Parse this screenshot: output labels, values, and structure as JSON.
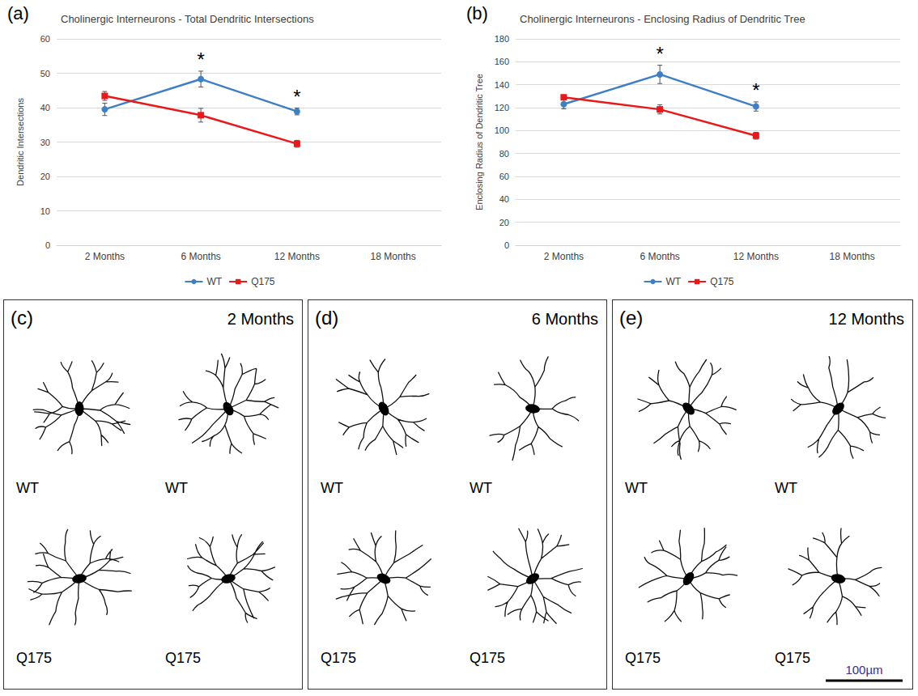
{
  "chart_data": [
    {
      "type": "line",
      "panel": "(a)",
      "title": "Cholinergic Interneurons - Total Dendritic Intersections",
      "y_label": "Dendritic Intersections",
      "categories": [
        "2 Months",
        "6 Months",
        "12 Months",
        "18 Months"
      ],
      "series": [
        {
          "name": "WT",
          "color": "#3f7fc4",
          "marker": "circle",
          "values": [
            39.5,
            48.3,
            38.9,
            null
          ],
          "errors": [
            1.8,
            2.3,
            1.0,
            null
          ]
        },
        {
          "name": "Q175",
          "color": "#e8191b",
          "marker": "square",
          "values": [
            43.4,
            37.8,
            29.5,
            null
          ],
          "errors": [
            1.3,
            2.0,
            1.0,
            null
          ]
        }
      ],
      "ylim": [
        0,
        60
      ],
      "yticks": [
        0,
        10,
        20,
        30,
        40,
        50,
        60
      ],
      "grid": true,
      "legend": "bottom",
      "annotations": [
        {
          "text": "*",
          "category": "6 Months"
        },
        {
          "text": "*",
          "category": "12 Months"
        }
      ]
    },
    {
      "type": "line",
      "panel": "(b)",
      "title": "Cholinergic Interneurons - Enclosing Radius of Dendritic Tree",
      "y_label": "Enclosing Radius of Dendritic Tree",
      "categories": [
        "2 Months",
        "6 Months",
        "12 Months",
        "18 Months"
      ],
      "series": [
        {
          "name": "WT",
          "color": "#3f7fc4",
          "marker": "circle",
          "values": [
            123,
            149,
            121,
            null
          ],
          "errors": [
            4,
            8,
            4,
            null
          ]
        },
        {
          "name": "Q175",
          "color": "#e8191b",
          "marker": "square",
          "values": [
            129,
            118.5,
            95.5,
            null
          ],
          "errors": [
            2,
            4,
            3,
            null
          ]
        }
      ],
      "ylim": [
        0,
        180
      ],
      "yticks": [
        0,
        20,
        40,
        60,
        80,
        100,
        120,
        140,
        160,
        180
      ],
      "grid": true,
      "legend": "bottom",
      "annotations": [
        {
          "text": "*",
          "category": "6 Months"
        },
        {
          "text": "*",
          "category": "12 Months"
        }
      ]
    }
  ],
  "drawings": [
    {
      "panel": "(c)",
      "title": "2 Months",
      "cells": [
        "WT",
        "WT",
        "Q175",
        "Q175"
      ]
    },
    {
      "panel": "(d)",
      "title": "6 Months",
      "cells": [
        "WT",
        "WT",
        "Q175",
        "Q175"
      ]
    },
    {
      "panel": "(e)",
      "title": "12 Months",
      "cells": [
        "WT",
        "WT",
        "Q175",
        "Q175"
      ]
    }
  ],
  "scale_bar": "100µm"
}
